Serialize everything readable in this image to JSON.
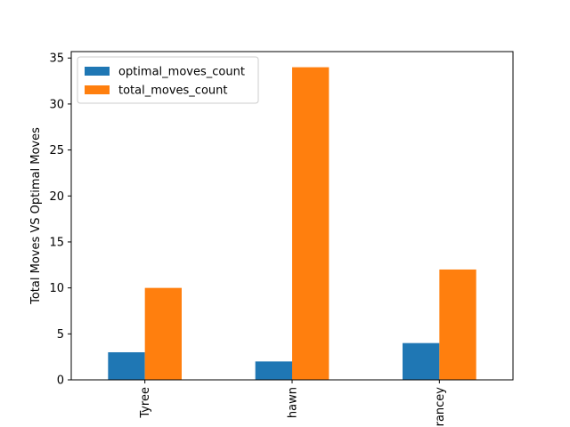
{
  "chart_data": {
    "type": "bar",
    "title": "",
    "xlabel": "",
    "ylabel": "Total Moves VS Optimal Moves",
    "categories": [
      "Tyree",
      "hawn",
      "rancey"
    ],
    "series": [
      {
        "name": "optimal_moves_count",
        "values": [
          3,
          2,
          4
        ],
        "color": "#1f77b4"
      },
      {
        "name": "total_moves_count",
        "values": [
          10,
          34,
          12
        ],
        "color": "#ff7f0e"
      }
    ],
    "ylim": [
      0,
      35.7
    ],
    "yticks": [
      0,
      5,
      10,
      15,
      20,
      25,
      30,
      35
    ],
    "grid": false,
    "legend_position": "upper-left"
  }
}
